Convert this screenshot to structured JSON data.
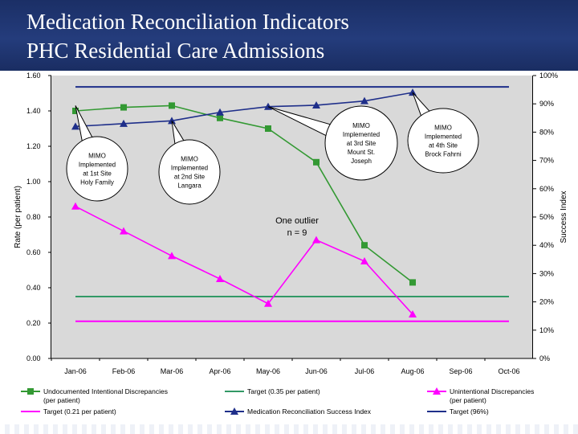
{
  "header": {
    "title_line1": "Medication Reconciliation Indicators",
    "title_line2": "PHC Residential Care Admissions",
    "background_color": "#1f3470"
  },
  "chart_data": {
    "type": "line",
    "categories": [
      "Jan-06",
      "Feb-06",
      "Mar-06",
      "Apr-06",
      "May-06",
      "Jun-06",
      "Jul-06",
      "Aug-06",
      "Sep-06",
      "Oct-06"
    ],
    "ylabel": "Rate (per patient)",
    "y2label": "Success Index",
    "ylim": [
      0,
      1.6
    ],
    "y2lim": [
      0,
      100
    ],
    "yticks": [
      "0.00",
      "0.20",
      "0.40",
      "0.60",
      "0.80",
      "1.00",
      "1.20",
      "1.40",
      "1.60"
    ],
    "y2ticks": [
      "0%",
      "10%",
      "20%",
      "30%",
      "40%",
      "50%",
      "60%",
      "70%",
      "80%",
      "90%",
      "100%"
    ],
    "plot_background": "#d9d9d9",
    "legend_position": "bottom",
    "series": [
      {
        "name": "Undocumented Intentional Discrepancies (per patient)",
        "axis": "left",
        "color": "#339933",
        "marker": "square",
        "values": [
          1.4,
          1.42,
          1.43,
          1.36,
          1.3,
          1.11,
          0.64,
          0.43,
          null,
          null
        ]
      },
      {
        "name": "Target (0.35 per patient)",
        "axis": "left",
        "color": "#339966",
        "marker": "none",
        "constant": 0.35
      },
      {
        "name": "Unintentional Discrepancies (per patient)",
        "axis": "left",
        "color": "#ff00ff",
        "marker": "triangle",
        "values": [
          0.86,
          0.72,
          0.58,
          0.45,
          0.31,
          0.67,
          0.55,
          0.25,
          null,
          null
        ]
      },
      {
        "name": "Target (0.21 per patient)",
        "axis": "left",
        "color": "#ff00ff",
        "marker": "none",
        "constant": 0.21
      },
      {
        "name": "Medication Reconciliation Success Index",
        "axis": "right",
        "color": "#1f2f8a",
        "marker": "triangle",
        "values": [
          82,
          83,
          84,
          87,
          89,
          89.5,
          91,
          94,
          null,
          null
        ]
      },
      {
        "name": "Target (96%)",
        "axis": "right",
        "color": "#1f2f8a",
        "marker": "none",
        "constant": 96
      }
    ],
    "annotations": [
      {
        "name": "callout-1st-site",
        "lines": [
          "MIMO",
          "Implemented",
          "at 1st Site",
          "Holy Family"
        ],
        "month_index": 0,
        "target_value": 1.43,
        "target_axis": "left"
      },
      {
        "name": "callout-2nd-site",
        "lines": [
          "MIMO",
          "Implemented",
          "at 2nd Site",
          "Langara"
        ],
        "month_index": 2,
        "target_value": 84,
        "target_axis": "right"
      },
      {
        "name": "callout-3rd-site",
        "lines": [
          "MIMO",
          "Implemented",
          "at 3rd Site",
          "Mount St.",
          "Joseph"
        ],
        "month_index": 4,
        "target_value": 89,
        "target_axis": "right"
      },
      {
        "name": "callout-4th-site",
        "lines": [
          "MIMO",
          "Implemented",
          "at 4th Site",
          "Brock Fahrni"
        ],
        "month_index": 7,
        "target_value": 94,
        "target_axis": "right"
      }
    ],
    "outlier_note": [
      "One outlier",
      "n = 9"
    ]
  }
}
